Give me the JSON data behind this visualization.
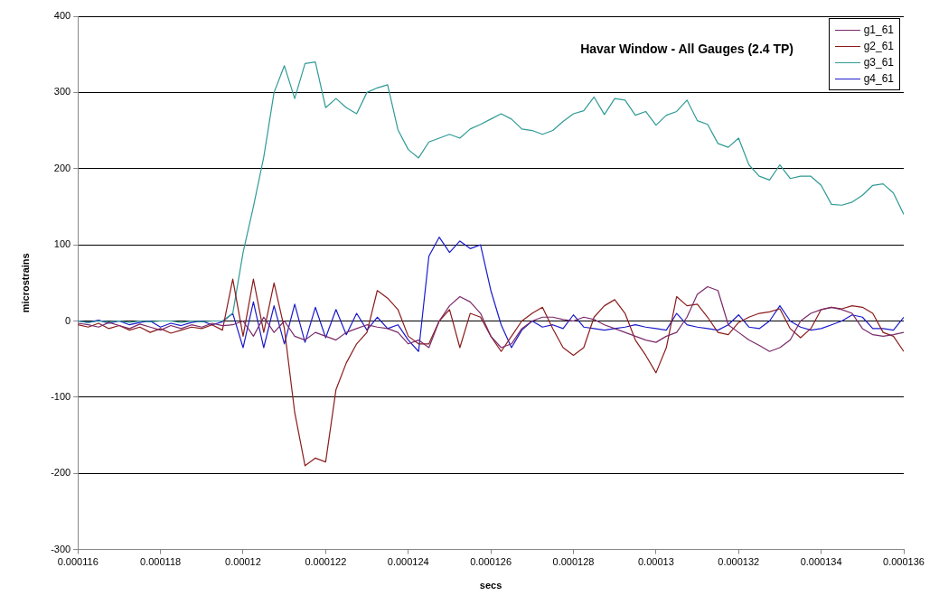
{
  "chart_data": {
    "type": "line",
    "title": "Havar Window - All Gauges (2.4 TP)",
    "xlabel": "secs",
    "ylabel": "microstrains",
    "x": [
      0.000116,
      0.00011625,
      0.0001165,
      0.00011675,
      0.000117,
      0.00011725,
      0.0001175,
      0.00011775,
      0.000118,
      0.00011825,
      0.0001185,
      0.00011875,
      0.000119,
      0.00011925,
      0.0001195,
      0.00011975,
      0.00012,
      0.00012025,
      0.0001205,
      0.00012075,
      0.000121,
      0.00012125,
      0.0001215,
      0.00012175,
      0.000122,
      0.00012225,
      0.0001225,
      0.00012275,
      0.000123,
      0.00012325,
      0.0001235,
      0.00012375,
      0.000124,
      0.00012425,
      0.0001245,
      0.00012475,
      0.000125,
      0.00012525,
      0.0001255,
      0.00012575,
      0.000126,
      0.00012625,
      0.0001265,
      0.00012675,
      0.000127,
      0.00012725,
      0.0001275,
      0.00012775,
      0.000128,
      0.00012825,
      0.0001285,
      0.00012875,
      0.000129,
      0.00012925,
      0.0001295,
      0.00012975,
      0.00013,
      0.00013025,
      0.0001305,
      0.00013075,
      0.000131,
      0.00013125,
      0.0001315,
      0.00013175,
      0.000132,
      0.00013225,
      0.0001325,
      0.00013275,
      0.000133,
      0.00013325,
      0.0001335,
      0.00013375,
      0.000134,
      0.00013425,
      0.0001345,
      0.00013475,
      0.000135,
      0.00013525,
      0.0001355,
      0.00013575,
      0.000136
    ],
    "series": [
      {
        "name": "g1_61",
        "color": "#7a2a6a",
        "values": [
          -3,
          -5,
          -8,
          -2,
          -6,
          -10,
          -4,
          -8,
          -12,
          -6,
          -10,
          -5,
          -8,
          -3,
          -6,
          -5,
          0,
          -20,
          5,
          -15,
          0,
          -20,
          -25,
          -15,
          -20,
          -25,
          -15,
          -10,
          -5,
          -8,
          -10,
          -15,
          -30,
          -25,
          -35,
          0,
          20,
          32,
          25,
          10,
          -20,
          -35,
          -30,
          -10,
          0,
          5,
          5,
          2,
          0,
          5,
          2,
          -5,
          -10,
          -15,
          -20,
          -25,
          -28,
          -20,
          -15,
          5,
          35,
          45,
          40,
          -5,
          -15,
          -25,
          -32,
          -40,
          -35,
          -25,
          0,
          10,
          15,
          18,
          15,
          10,
          -10,
          -18,
          -20,
          -18,
          -15
        ]
      },
      {
        "name": "g2_61",
        "color": "#8b1c1c",
        "values": [
          -5,
          -8,
          -3,
          -10,
          -6,
          -12,
          -8,
          -15,
          -10,
          -16,
          -12,
          -8,
          -10,
          -5,
          -12,
          55,
          -20,
          55,
          -15,
          50,
          -10,
          -120,
          -190,
          -180,
          -185,
          -90,
          -55,
          -30,
          -15,
          40,
          30,
          15,
          -20,
          -30,
          -30,
          0,
          15,
          -35,
          10,
          5,
          -20,
          -40,
          -20,
          0,
          10,
          18,
          -10,
          -35,
          -45,
          -35,
          5,
          20,
          28,
          10,
          -25,
          -45,
          -68,
          -35,
          32,
          20,
          22,
          5,
          -15,
          -18,
          -2,
          5,
          10,
          12,
          16,
          -10,
          -22,
          -10,
          15,
          18,
          16,
          20,
          18,
          10,
          -15,
          -20,
          -40
        ]
      },
      {
        "name": "g3_61",
        "color": "#2f9a96",
        "values": [
          0,
          -2,
          0,
          -1,
          0,
          -2,
          0,
          -1,
          0,
          0,
          -2,
          0,
          -1,
          0,
          0,
          10,
          90,
          150,
          215,
          300,
          335,
          292,
          338,
          340,
          280,
          292,
          280,
          272,
          300,
          306,
          310,
          251,
          225,
          214,
          235,
          240,
          245,
          240,
          252,
          258,
          265,
          272,
          265,
          252,
          250,
          245,
          250,
          262,
          272,
          276,
          294,
          271,
          292,
          290,
          270,
          275,
          257,
          270,
          275,
          290,
          263,
          258,
          233,
          228,
          240,
          205,
          190,
          185,
          205,
          187,
          190,
          190,
          178,
          153,
          152,
          156,
          165,
          178,
          180,
          168,
          140
        ]
      },
      {
        "name": "g4_61",
        "color": "#1a1acc",
        "values": [
          0,
          -2,
          1,
          -3,
          0,
          -5,
          -2,
          0,
          -8,
          -3,
          -6,
          -2,
          0,
          -5,
          -1,
          10,
          -35,
          25,
          -35,
          20,
          -30,
          22,
          -28,
          18,
          -22,
          15,
          -18,
          10,
          -12,
          5,
          -10,
          -5,
          -25,
          -40,
          85,
          110,
          90,
          105,
          95,
          100,
          40,
          -5,
          -35,
          -12,
          0,
          -8,
          -5,
          -10,
          8,
          -8,
          -10,
          -12,
          -10,
          -8,
          -5,
          -8,
          -10,
          -12,
          10,
          -5,
          -8,
          -10,
          -12,
          -5,
          8,
          -8,
          -10,
          0,
          20,
          0,
          -8,
          -12,
          -10,
          -5,
          0,
          8,
          5,
          -10,
          -10,
          -12,
          5
        ]
      }
    ],
    "xlim": [
      0.000116,
      0.000136
    ],
    "xticks": [
      0.000116,
      0.000118,
      0.00012,
      0.000122,
      0.000124,
      0.000126,
      0.000128,
      0.00013,
      0.000132,
      0.000134,
      0.000136
    ],
    "ylim": [
      -300,
      400
    ],
    "yticks": [
      -300,
      -200,
      -100,
      0,
      100,
      200,
      300,
      400
    ],
    "grid": "y",
    "legend": "top right",
    "marker": "none",
    "line_style": "solid"
  }
}
